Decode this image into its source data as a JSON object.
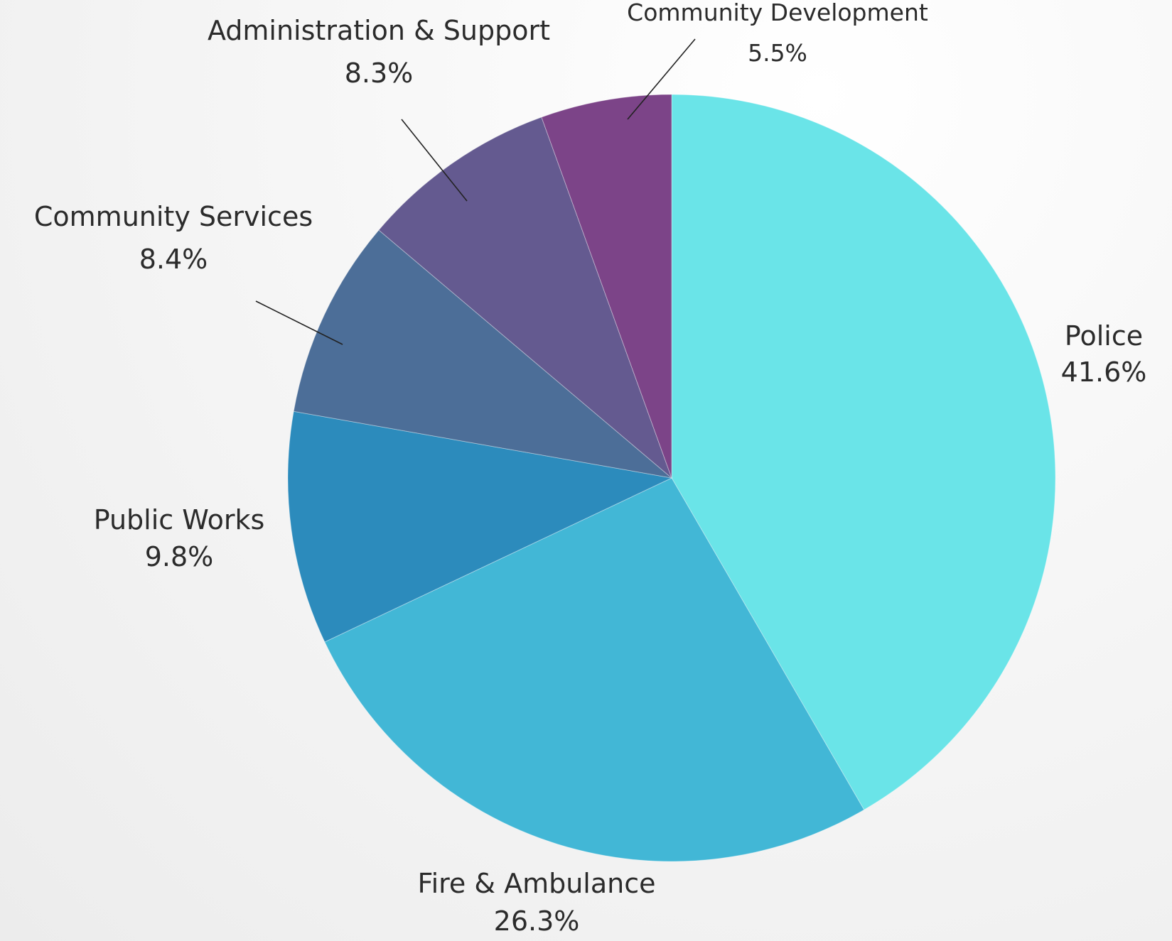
{
  "chart_data": {
    "type": "pie",
    "title": "",
    "start_angle_deg": 0,
    "direction": "clockwise",
    "unit": "%",
    "slices": [
      {
        "name": "Police",
        "value": 41.6,
        "label": "41.6%",
        "color": "#6AE4E8"
      },
      {
        "name": "Fire & Ambulance",
        "value": 26.3,
        "label": "26.3%",
        "color": "#42B7D6"
      },
      {
        "name": "Public Works",
        "value": 9.8,
        "label": "9.8%",
        "color": "#2C8BBC"
      },
      {
        "name": "Community Services",
        "value": 8.4,
        "label": "8.4%",
        "color": "#4C6E98"
      },
      {
        "name": "Administration & Support",
        "value": 8.3,
        "label": "8.3%",
        "color": "#645A90"
      },
      {
        "name": "Community Development",
        "value": 5.5,
        "label": "5.5%",
        "color": "#7C4488"
      }
    ]
  }
}
